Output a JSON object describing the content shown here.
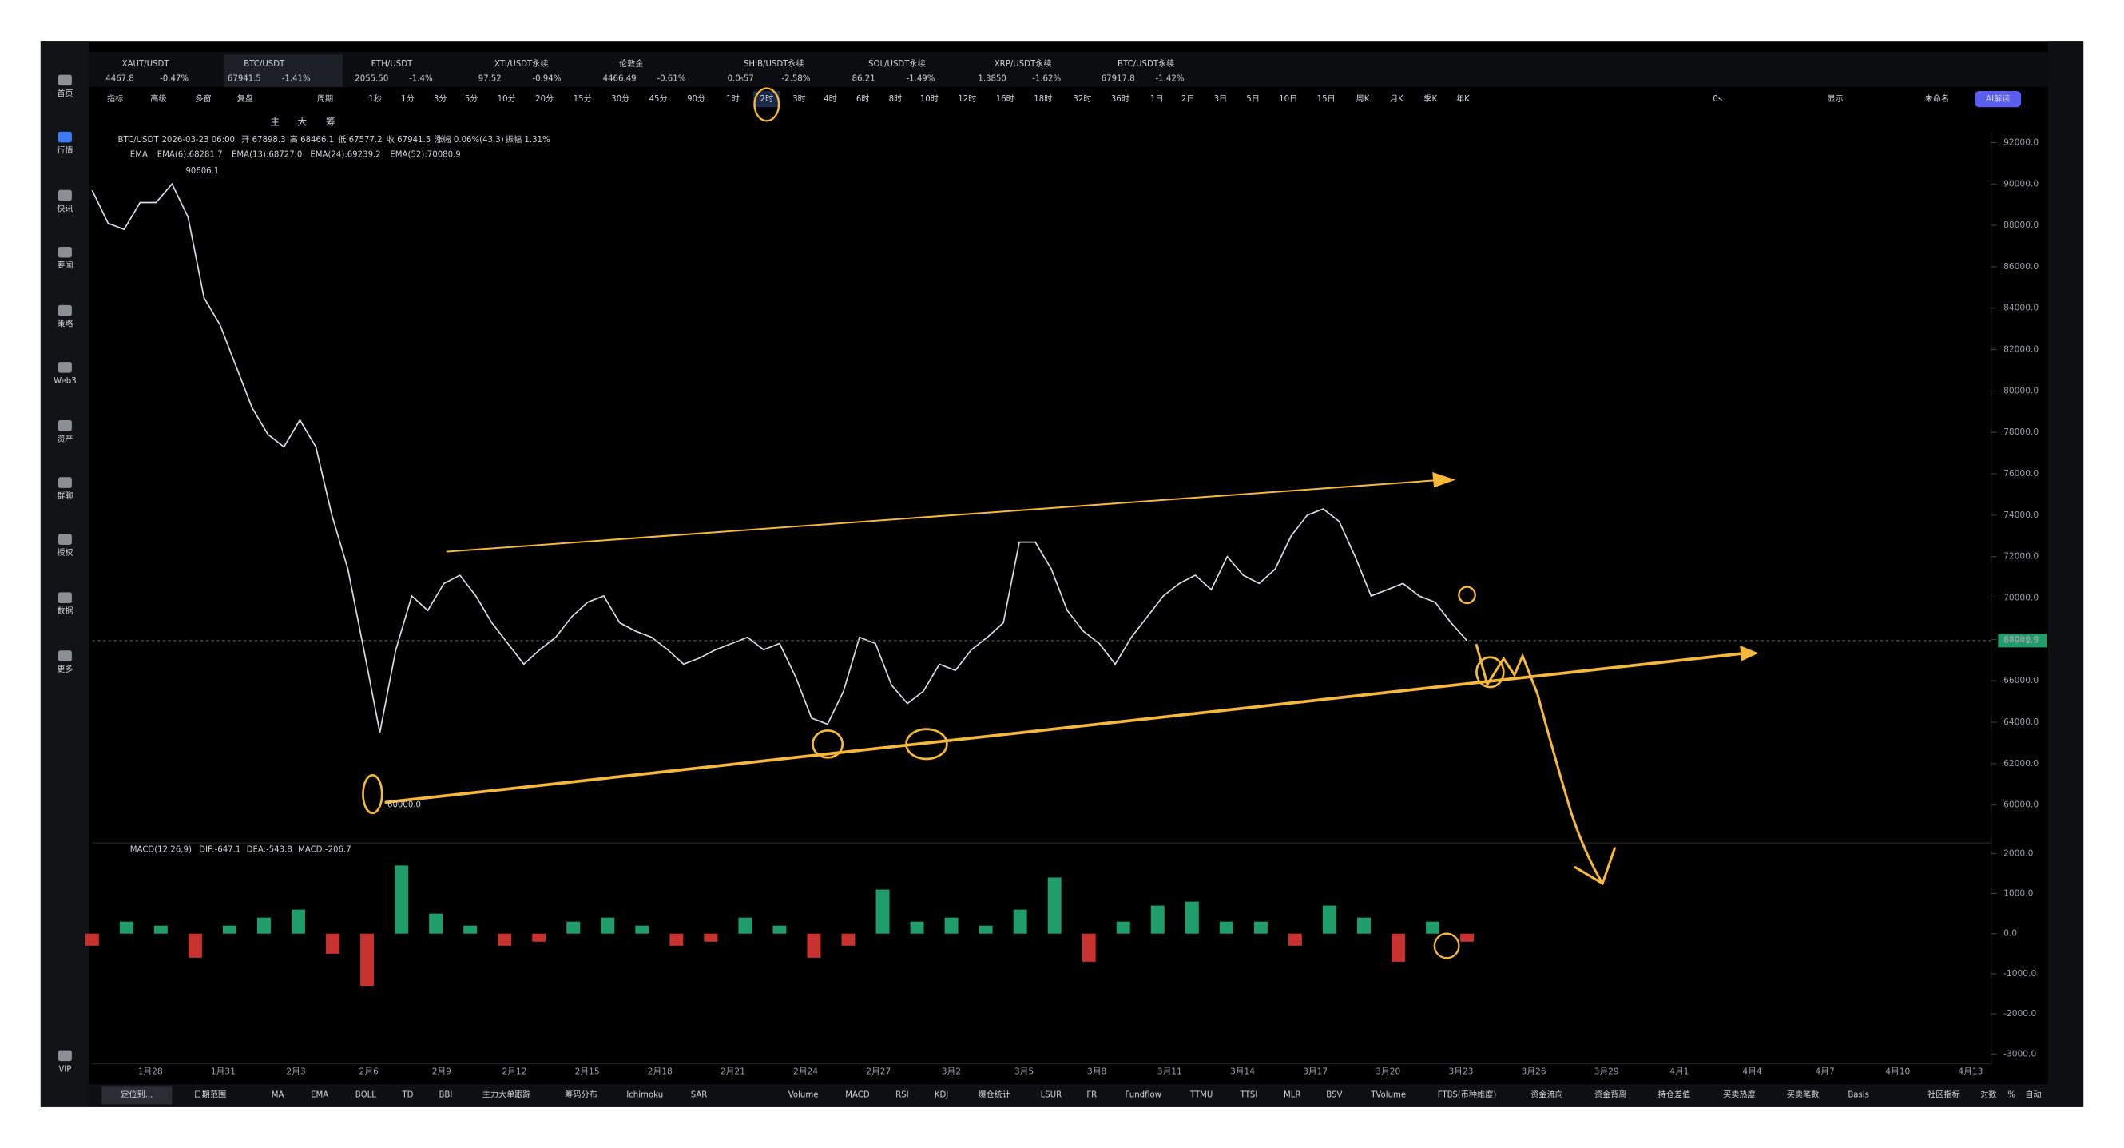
{
  "sidebar": [
    "首页",
    "行情",
    "快讯",
    "要闻",
    "策略",
    "Web3",
    "资产",
    "群聊",
    "授权",
    "数据",
    "更多",
    "VIP"
  ],
  "tickers": [
    {
      "symbol": "XAUT/USDT",
      "price": "4467.8",
      "change": "-0.47%"
    },
    {
      "symbol": "BTC/USDT",
      "price": "67941.5",
      "change": "-1.41%"
    },
    {
      "symbol": "ETH/USDT",
      "price": "2055.50",
      "change": "-1.4%"
    },
    {
      "symbol": "XTI/USDT永续",
      "price": "97.52",
      "change": "-0.94%"
    },
    {
      "symbol": "伦敦金",
      "price": "4466.49",
      "change": "-0.61%"
    },
    {
      "symbol": "SHIB/USDT永续",
      "price": "0.0₅57",
      "change": "-2.58%"
    },
    {
      "symbol": "SOL/USDT永续",
      "price": "86.21",
      "change": "-1.49%"
    },
    {
      "symbol": "XRP/USDT永续",
      "price": "1.3850",
      "change": "-1.62%"
    },
    {
      "symbol": "BTC/USDT永续",
      "price": "67917.8",
      "change": "-1.42%"
    }
  ],
  "toolbar": [
    "指标",
    "高级",
    "多窗",
    "复盘",
    "周期",
    "1秒",
    "1分",
    "3分",
    "5分",
    "10分",
    "20分",
    "15分",
    "30分",
    "45分",
    "90分",
    "1时",
    "2时",
    "3时",
    "4时",
    "6时",
    "8时",
    "10时",
    "12时",
    "16时",
    "18时",
    "32时",
    "36时",
    "1日",
    "2日",
    "3日",
    "5日",
    "10日",
    "15日",
    "周K",
    "月K",
    "季K",
    "年K"
  ],
  "toolbar_right": [
    "0s",
    "显示",
    "未命名",
    "AI解读"
  ],
  "drawing_tools": [
    "主",
    "大",
    "筹"
  ],
  "info": [
    "BTC/USDT",
    "2026-03-23 06:00",
    "开 67898.3",
    "高 68466.1",
    "低 67577.2",
    "收 67941.5",
    "涨幅 0.06%(43.3)",
    "振幅 1.31%"
  ],
  "ema_legend": [
    "EMA",
    "EMA(6):68281.7",
    "EMA(13):68727.0",
    "EMA(24):69239.2",
    "EMA(52):70080.9"
  ],
  "chart": {
    "ylim": [
      58300,
      92460
    ],
    "yticks": [
      {
        "value": 92000,
        "label": "92000.0"
      },
      {
        "value": 90000,
        "label": "90000.0"
      },
      {
        "value": 88000,
        "label": "88000.0"
      },
      {
        "value": 86000,
        "label": "86000.0"
      },
      {
        "value": 84000,
        "label": "84000.0"
      },
      {
        "value": 82000,
        "label": "82000.0"
      },
      {
        "value": 80000,
        "label": "80000.0"
      },
      {
        "value": 78000,
        "label": "78000.0"
      },
      {
        "value": 76000,
        "label": "76000.0"
      },
      {
        "value": 74000,
        "label": "74000.0"
      },
      {
        "value": 72000,
        "label": "72000.0"
      },
      {
        "value": 70000,
        "label": "70000.0"
      },
      {
        "value": 68000,
        "label": "68000.0"
      },
      {
        "value": 66000,
        "label": "66000.0"
      },
      {
        "value": 64000,
        "label": "64000.0"
      },
      {
        "value": 62000,
        "label": "62000.0"
      },
      {
        "value": 60000,
        "label": "60000.0"
      }
    ],
    "x_labels": [
      "1月28",
      "1月31",
      "2月3",
      "2月6",
      "2月9",
      "2月12",
      "2月15",
      "2月18",
      "2月21",
      "2月24",
      "2月27",
      "3月2",
      "3月5",
      "3月8",
      "3月11",
      "3月14",
      "3月17",
      "3月20",
      "3月23",
      "3月26",
      "3月29",
      "4月1",
      "4月4",
      "4月7",
      "4月10",
      "4月13"
    ],
    "closes": [
      89700,
      88100,
      87800,
      89100,
      89100,
      90000,
      88400,
      84500,
      83200,
      81200,
      79200,
      77900,
      77300,
      78600,
      77300,
      74000,
      71400,
      67500,
      63500,
      67500,
      70100,
      69400,
      70700,
      71100,
      70100,
      68800,
      67800,
      66800,
      67500,
      68100,
      69100,
      69800,
      70100,
      68800,
      68400,
      68100,
      67500,
      66800,
      67100,
      67500,
      67800,
      68100,
      67500,
      67800,
      66200,
      64200,
      63900,
      65500,
      68100,
      67800,
      65800,
      64900,
      65500,
      66800,
      66500,
      67500,
      68100,
      68800,
      72700,
      72700,
      71400,
      69400,
      68400,
      67800,
      66800,
      68100,
      69100,
      70100,
      70700,
      71100,
      70400,
      72000,
      71100,
      70700,
      71400,
      73000,
      74000,
      74300,
      73700,
      72000,
      70100,
      70400,
      70700,
      70100,
      69800,
      68800,
      67941.5
    ],
    "line_color": "#d9dde2",
    "current_price": 67941.5,
    "high_label": "90606.1",
    "low_label": "60000.0"
  },
  "macd": {
    "legend": [
      "MACD(12,26,9)",
      "DIF:-647.1",
      "DEA:-543.8",
      "MACD:-206.7"
    ],
    "ylim": [
      -3243,
      2263
    ],
    "yticks": [
      {
        "value": 2000,
        "label": "2000.0"
      },
      {
        "value": 1000,
        "label": "1000.0"
      },
      {
        "value": 0,
        "label": "0.0"
      },
      {
        "value": -1000,
        "label": "-1000.0"
      },
      {
        "value": -2000,
        "label": "-2000.0"
      },
      {
        "value": -3000,
        "label": "-3000.0"
      }
    ],
    "values": [
      -300,
      300,
      200,
      -600,
      200,
      400,
      600,
      -500,
      -1300,
      1700,
      500,
      200,
      -300,
      -200,
      300,
      400,
      200,
      -300,
      -200,
      400,
      200,
      -600,
      -300,
      1100,
      300,
      400,
      200,
      600,
      1400,
      -700,
      300,
      700,
      800,
      300,
      300,
      -300,
      700,
      400,
      -700,
      300,
      -200
    ],
    "up_color": "#1f9d6b",
    "down_color": "#c8322f"
  },
  "bottom_bar": [
    "定位到...",
    "日期范围",
    "MA",
    "EMA",
    "BOLL",
    "TD",
    "BBI",
    "主力大单跟踪",
    "筹码分布",
    "Ichimoku",
    "SAR",
    "Volume",
    "MACD",
    "RSI",
    "KDJ",
    "爆仓统计",
    "LSUR",
    "FR",
    "Fundflow",
    "TTMU",
    "TTSI",
    "MLR",
    "BSV",
    "TVolume",
    "FTBS(币种维度)",
    "资金流向",
    "资金背离",
    "持仓差值",
    "买卖热度",
    "买卖笔数",
    "Basis",
    "社区指标",
    "对数",
    "%",
    "自动"
  ]
}
